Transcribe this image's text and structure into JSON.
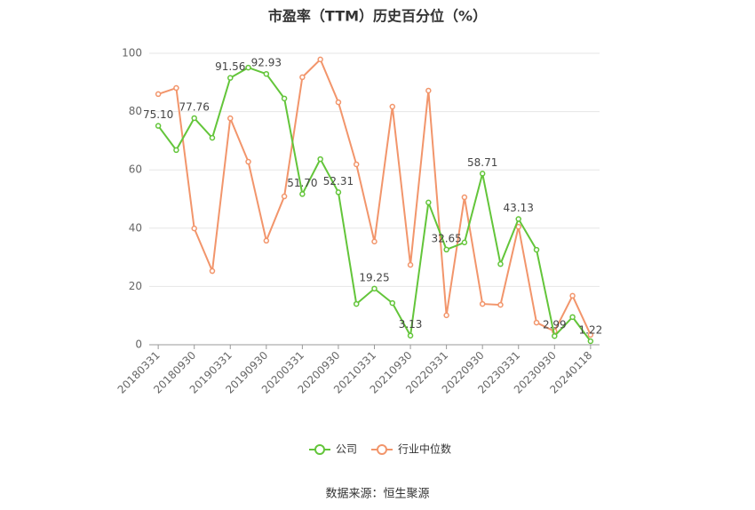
{
  "chart_data": {
    "type": "line",
    "title": "市盈率（TTM）历史百分位（%）",
    "categories": [
      "20180331",
      null,
      "20180930",
      null,
      "20190331",
      null,
      "20190930",
      null,
      "20200331",
      null,
      "20200930",
      null,
      "20210331",
      null,
      "20210930",
      null,
      "20220331",
      null,
      "20220930",
      null,
      "20230331",
      null,
      "20230930",
      null,
      "20240118"
    ],
    "series": [
      {
        "name": "公司",
        "color": "#63c53a",
        "values": [
          75.1,
          66.8,
          77.76,
          71.0,
          91.56,
          95.1,
          92.93,
          84.5,
          51.7,
          63.7,
          52.31,
          14.0,
          19.25,
          14.3,
          3.13,
          48.8,
          32.65,
          35.1,
          58.71,
          27.7,
          43.13,
          32.6,
          2.99,
          9.5,
          1.22
        ],
        "value_labels": [
          "75.10",
          null,
          "77.76",
          null,
          "91.56",
          null,
          "92.93",
          null,
          "51.70",
          null,
          "52.31",
          null,
          "19.25",
          null,
          "3.13",
          null,
          "32.65",
          null,
          "58.71",
          null,
          "43.13",
          null,
          "2.99",
          null,
          "1.22"
        ]
      },
      {
        "name": "行业中位数",
        "color": "#f2956b",
        "values": [
          86.0,
          88.1,
          39.9,
          25.3,
          77.7,
          62.8,
          35.7,
          50.9,
          91.8,
          97.9,
          83.2,
          61.9,
          35.4,
          81.7,
          27.4,
          87.2,
          10.1,
          50.6,
          14.0,
          13.7,
          40.5,
          7.6,
          4.6,
          16.8,
          3.4
        ]
      }
    ],
    "ylim": [
      0,
      100
    ],
    "yticks": [
      0,
      20,
      40,
      60,
      80,
      100
    ],
    "grid": true,
    "source": "数据来源：恒生聚源"
  }
}
